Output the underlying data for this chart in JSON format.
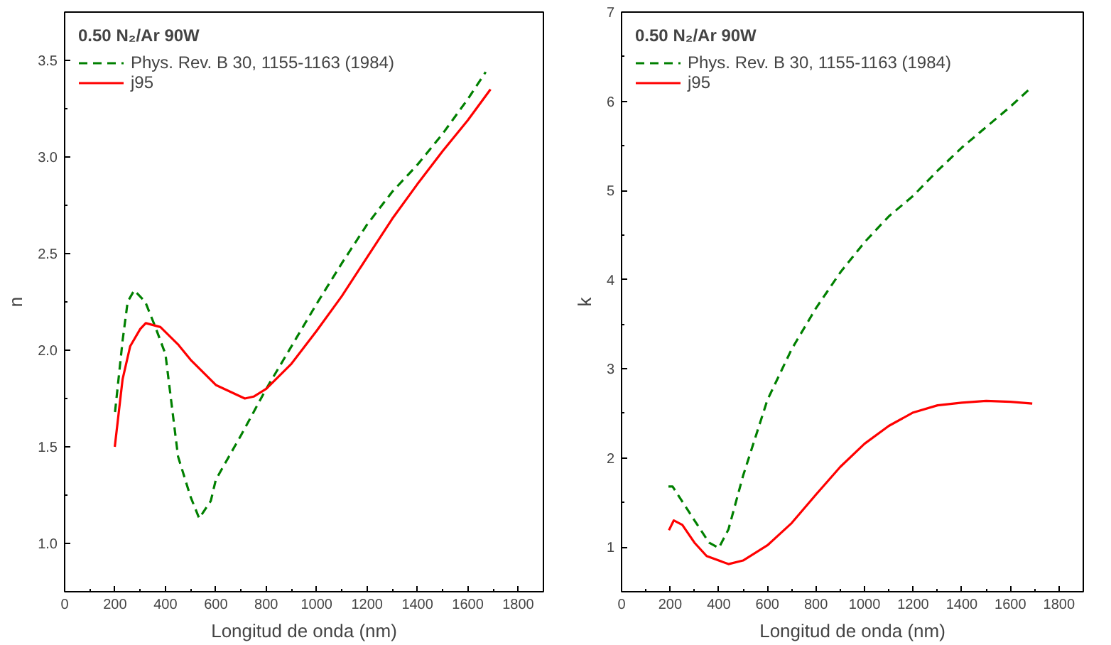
{
  "chart_data": [
    {
      "type": "line",
      "xlabel": "Longitud de onda (nm)",
      "ylabel": "n",
      "legend_title": "0.50 N₂/Ar 90W",
      "legend": "top left",
      "grid": false,
      "marker": "none",
      "xlim": [
        0,
        1900
      ],
      "xticks": [
        0,
        200,
        400,
        600,
        800,
        1000,
        1200,
        1400,
        1600,
        1800
      ],
      "ylim": [
        0.75,
        3.75
      ],
      "yticks": [
        {
          "value": 1.0,
          "label": "1.0"
        },
        1.5,
        {
          "value": 2.0,
          "label": "2.0"
        },
        2.5,
        {
          "value": 3.0,
          "label": "3.0"
        },
        3.5
      ],
      "series": [
        {
          "name": "Phys. Rev. B 30, 1155-1163 (1984)",
          "color": "#008000",
          "line_style": "dashed",
          "x": [
            200,
            230,
            250,
            276,
            320,
            360,
            400,
            450,
            500,
            534,
            580,
            600,
            700,
            800,
            900,
            1000,
            1100,
            1200,
            1300,
            1400,
            1500,
            1600,
            1671
          ],
          "values": [
            1.68,
            2.05,
            2.25,
            2.31,
            2.25,
            2.12,
            1.98,
            1.45,
            1.24,
            1.13,
            1.22,
            1.33,
            1.56,
            1.8,
            2.02,
            2.24,
            2.45,
            2.65,
            2.82,
            2.96,
            3.12,
            3.3,
            3.44
          ]
        },
        {
          "name": "j95",
          "color": "#ff0000",
          "line_style": "solid",
          "x": [
            199,
            230,
            260,
            300,
            322,
            380,
            450,
            500,
            600,
            715,
            750,
            800,
            900,
            1000,
            1100,
            1200,
            1300,
            1400,
            1500,
            1600,
            1690
          ],
          "values": [
            1.5,
            1.85,
            2.02,
            2.11,
            2.14,
            2.12,
            2.03,
            1.95,
            1.82,
            1.75,
            1.76,
            1.8,
            1.93,
            2.1,
            2.28,
            2.48,
            2.68,
            2.86,
            3.03,
            3.19,
            3.35
          ]
        }
      ]
    },
    {
      "type": "line",
      "xlabel": "Longitud de onda (nm)",
      "ylabel": "k",
      "legend_title": "0.50 N₂/Ar 90W",
      "legend": "top left",
      "grid": false,
      "marker": "none",
      "xlim": [
        0,
        1900
      ],
      "xticks": [
        0,
        200,
        400,
        600,
        800,
        1000,
        1200,
        1400,
        1600,
        1800
      ],
      "ylim": [
        0.5,
        7
      ],
      "yticks": [
        1,
        2,
        3,
        4,
        5,
        6,
        7
      ],
      "series": [
        {
          "name": "Phys. Rev. B 30, 1155-1163 (1984)",
          "color": "#008000",
          "line_style": "dashed",
          "x": [
            193,
            210,
            300,
            360,
            400,
            440,
            500,
            600,
            700,
            800,
            900,
            1000,
            1100,
            1200,
            1300,
            1400,
            1500,
            1600,
            1680
          ],
          "values": [
            1.68,
            1.68,
            1.3,
            1.05,
            0.99,
            1.2,
            1.8,
            2.65,
            3.22,
            3.68,
            4.08,
            4.42,
            4.71,
            4.94,
            5.22,
            5.48,
            5.71,
            5.94,
            6.14
          ]
        },
        {
          "name": "j95",
          "color": "#ff0000",
          "line_style": "solid",
          "x": [
            195,
            215,
            250,
            300,
            350,
            440,
            500,
            600,
            700,
            800,
            900,
            1000,
            1100,
            1200,
            1300,
            1400,
            1500,
            1600,
            1690
          ],
          "values": [
            1.19,
            1.3,
            1.25,
            1.05,
            0.9,
            0.81,
            0.85,
            1.02,
            1.27,
            1.59,
            1.9,
            2.16,
            2.36,
            2.51,
            2.59,
            2.62,
            2.64,
            2.63,
            2.61
          ]
        }
      ]
    }
  ]
}
